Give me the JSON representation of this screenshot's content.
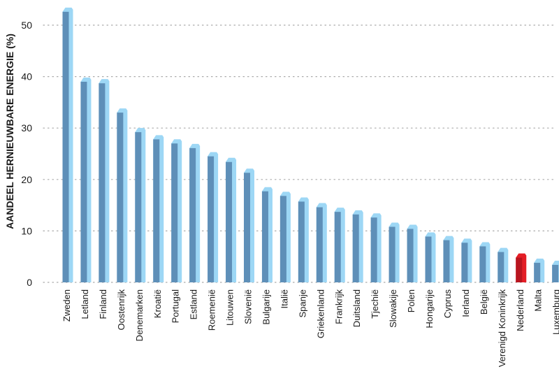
{
  "chart_data": {
    "type": "bar",
    "ylabel": "AANDEEL HERNIEUWBARE ENERGIE (%)",
    "ylim": [
      0,
      50
    ],
    "yticks": [
      0,
      10,
      20,
      30,
      40,
      50
    ],
    "grid": true,
    "highlight": "Nederland",
    "categories": [
      "Zweden",
      "Letland",
      "Finland",
      "Oostenrijk",
      "Denemarken",
      "Kroatië",
      "Portugal",
      "Estland",
      "Roemenië",
      "Litouwen",
      "Slovenië",
      "Bulgarije",
      "Italië",
      "Spanje",
      "Griekenland",
      "Frankrijk",
      "Duitsland",
      "Tjechië",
      "Slowakije",
      "Polen",
      "Hongarije",
      "Cyprus",
      "Ierland",
      "België",
      "Verenigd Koninkrijk",
      "Nederland",
      "Malta",
      "Luxemburg"
    ],
    "values": [
      52.6,
      39.0,
      38.7,
      33.0,
      29.2,
      27.8,
      27.0,
      26.1,
      24.5,
      23.4,
      21.3,
      17.7,
      16.8,
      15.7,
      14.6,
      13.7,
      13.2,
      12.6,
      10.8,
      10.4,
      8.9,
      8.2,
      7.7,
      7.0,
      5.9,
      4.8,
      3.8,
      3.4
    ]
  },
  "colors": {
    "bar_front": "#5e8fb8",
    "bar_side": "#9dd7f5",
    "highlight_front": "#b8151f",
    "highlight_side": "#e41e26",
    "grid": "#a9a9a9",
    "text": "#1a1a1a"
  }
}
